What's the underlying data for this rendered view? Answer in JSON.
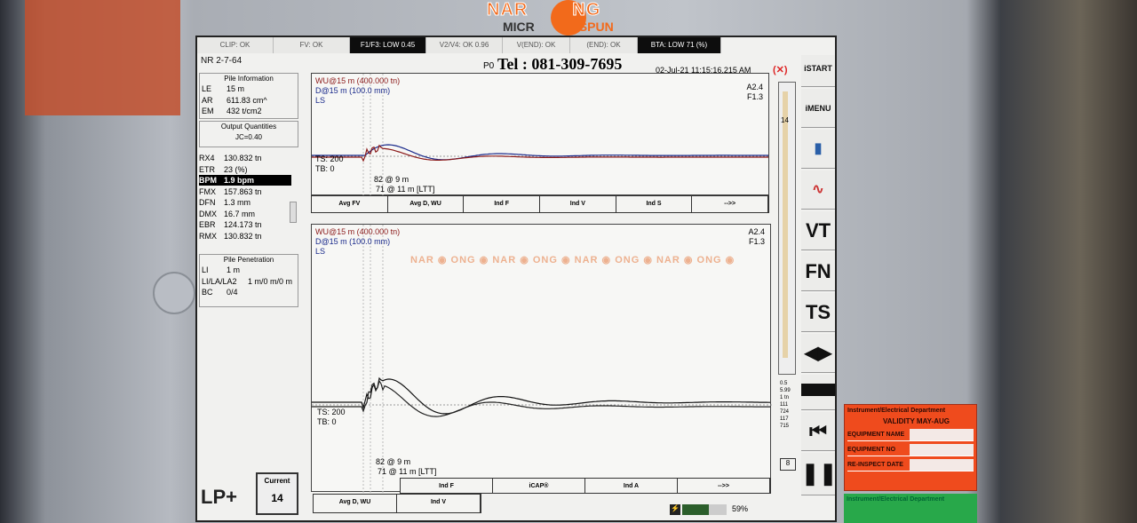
{
  "header_tabs": [
    "CLIP: OK",
    "FV: OK",
    "F1/F3: LOW 0.45",
    "V2/V4: OK 0.96",
    "V(END): OK",
    "(END): OK",
    "BTA: LOW 71 (%)"
  ],
  "record_id": "NR 2-7-64",
  "pile_label": "P0",
  "datetime": "02-Jul-21 11:15:16.215 AM",
  "pile_info": {
    "title": "Pile Information",
    "rows": [
      {
        "k": "LE",
        "v": "15 m"
      },
      {
        "k": "AR",
        "v": "611.83 cm^"
      },
      {
        "k": "EM",
        "v": "432 t/cm2"
      }
    ]
  },
  "output_quantities": {
    "title": "Output Quantities",
    "jc": "JC=0.40",
    "rows": [
      {
        "k": "RX4",
        "v": "130.832 tn"
      },
      {
        "k": "ETR",
        "v": "23 (%)"
      },
      {
        "k": "BPM",
        "v": "1.9 bpm",
        "selected": true
      },
      {
        "k": "FMX",
        "v": "157.863 tn"
      },
      {
        "k": "DFN",
        "v": "1.3 mm"
      },
      {
        "k": "DMX",
        "v": "16.7 mm"
      },
      {
        "k": "EBR",
        "v": "124.173 tn"
      },
      {
        "k": "RMX",
        "v": "130.832 tn"
      }
    ]
  },
  "pile_penetration": {
    "title": "Pile Penetration",
    "rows": [
      {
        "k": "LI",
        "v": "1 m"
      },
      {
        "k": "LI/LA/LA2",
        "v": "1 m/0 m/0 m"
      },
      {
        "k": "BC",
        "v": "0/4"
      }
    ]
  },
  "lp_button": "LP+",
  "current": {
    "label": "Current",
    "value": "14"
  },
  "plot1": {
    "legend": [
      "WU@15 m (400.000 tn)",
      "D@15 m (100.0 mm)",
      "LS"
    ],
    "scale": [
      "A2.4",
      "F1.3"
    ],
    "ts": "TS: 200",
    "tb": "TB: 0",
    "annot": [
      "82 @ 9 m",
      "71 @ 11 m [LTT]"
    ],
    "buttons": [
      "Avg FV",
      "Avg D, WU",
      "Ind F",
      "Ind V",
      "Ind S",
      "-->>"
    ]
  },
  "plot2": {
    "legend": [
      "WU@15 m (400.000 tn)",
      "D@15 m (100.0 mm)",
      "LS"
    ],
    "scale": [
      "A2.4",
      "F1.3"
    ],
    "ts": "TS: 200",
    "tb": "TB: 0",
    "annot": [
      "82 @ 9 m",
      "71 @ 11 m [LTT]"
    ],
    "buttons": [
      "Avg D, WU",
      "Ind V",
      "Ind F",
      "iCAP®",
      "Ind A",
      "-->>"
    ]
  },
  "side_scale": {
    "top": "14",
    "vals": [
      "0.5",
      "5.99",
      "1 tn",
      "111",
      "724",
      "117",
      "715"
    ],
    "bottom": "8"
  },
  "right_buttons": {
    "start": "iSTART",
    "menu": "iMENU",
    "vt": "VT",
    "fn": "FN",
    "ts": "TS"
  },
  "battery": {
    "percent": "59%",
    "level": 0.59
  },
  "watermark": {
    "brand_top": "NARONG",
    "brand_bottom": "MICRO SPUN",
    "tel": "Tel : 081-309-7695"
  },
  "sticker": {
    "dept": "Instrument/Electrical Department",
    "validity": "VALIDITY MAY-AUG",
    "fields": [
      "EQUIPMENT NAME",
      "EQUIPMENT NO",
      "RE-INSPECT DATE"
    ]
  },
  "sticker2": {
    "dept": "Instrument/Electrical Department"
  },
  "colors": {
    "wu": "#8b1a1a",
    "d": "#1a2a8b",
    "accent": "#f26a1b"
  }
}
